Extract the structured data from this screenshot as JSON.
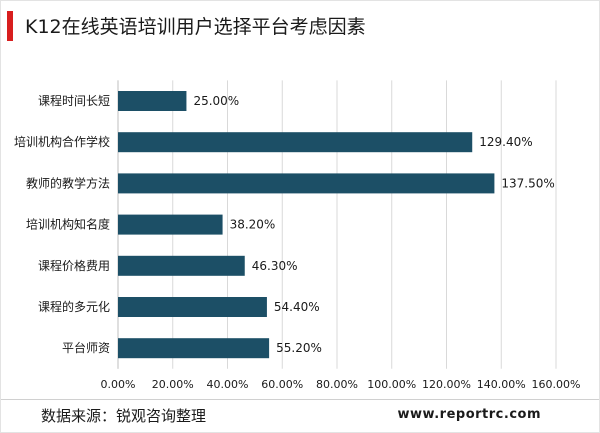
{
  "header": {
    "title": "K12在线英语培训用户选择平台考虑因素"
  },
  "footer": {
    "source": "数据来源：锐观咨询整理",
    "website": "www.reportrc.com"
  },
  "colors": {
    "bar": "#1c4f66",
    "accent": "#d81e1e",
    "text": "#1a1a1a",
    "grid": "#d9d9d9"
  },
  "chart_data": {
    "type": "bar",
    "orientation": "horizontal",
    "title": "",
    "xlabel": "",
    "ylabel": "",
    "categories": [
      "课程时间长短",
      "培训机构合作学校",
      "教师的教学方法",
      "培训机构知名度",
      "课程价格费用",
      "课程的多元化",
      "平台师资"
    ],
    "values": [
      25.0,
      129.4,
      137.5,
      38.2,
      46.3,
      54.4,
      55.2
    ],
    "value_labels": [
      "25.00%",
      "129.40%",
      "137.50%",
      "38.20%",
      "46.30%",
      "54.40%",
      "55.20%"
    ],
    "xlim": [
      0,
      160
    ],
    "xticks": [
      "0.00%",
      "20.00%",
      "40.00%",
      "60.00%",
      "80.00%",
      "100.00%",
      "120.00%",
      "140.00%",
      "160.00%"
    ],
    "grid": true,
    "legend": "none"
  }
}
